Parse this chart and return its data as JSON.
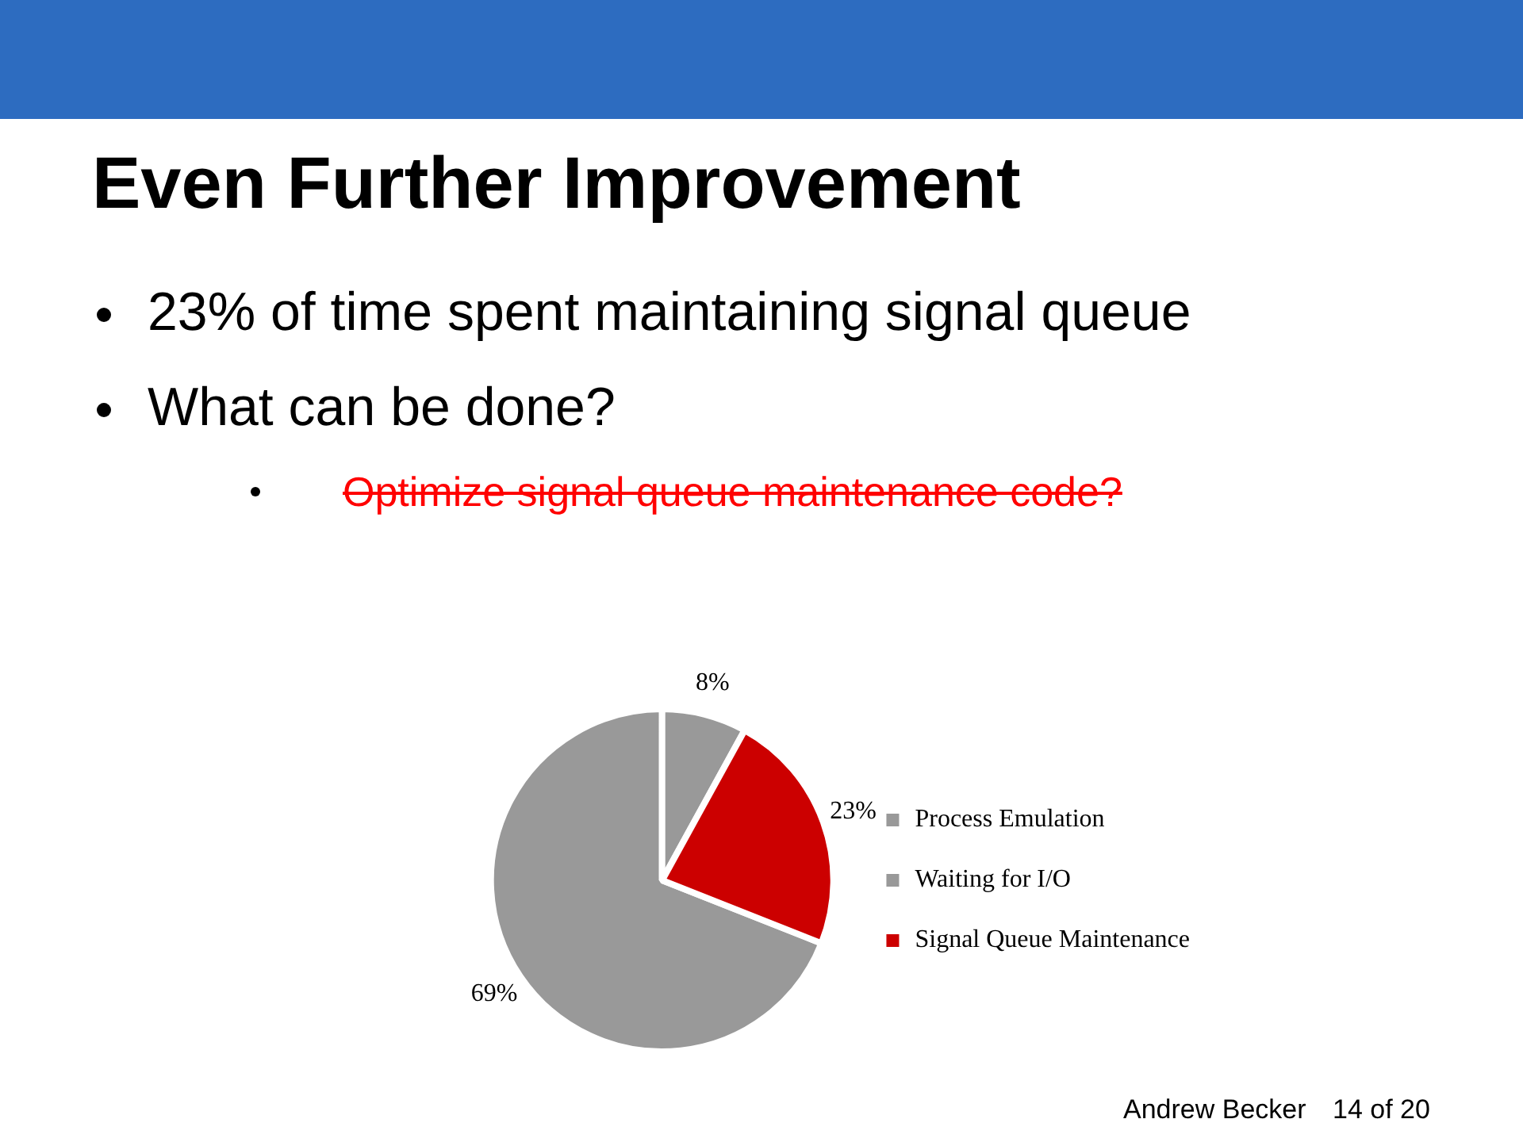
{
  "chart_data": {
    "type": "pie",
    "title": "Even Further Improvement",
    "categories": [
      "Process Emulation",
      "Waiting for I/O",
      "Signal Queue Maintenance"
    ],
    "values": [
      69,
      8,
      23
    ],
    "value_labels": [
      "69%",
      "8%",
      "23%"
    ],
    "colors": [
      "#999999",
      "#999999",
      "#cc0000"
    ],
    "legend": "right",
    "annotations": [
      "23% of time spent maintaining signal queue",
      "What can be done?",
      "Optimize signal queue maintenance code?",
      "Andrew Becker",
      "14 of 20"
    ]
  }
}
